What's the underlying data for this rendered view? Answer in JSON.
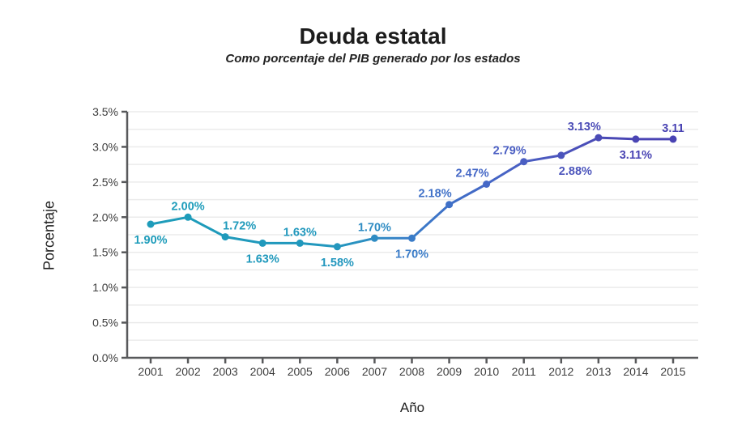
{
  "chart_data": {
    "type": "line",
    "title": "Deuda estatal",
    "subtitle": "Como porcentaje del PIB generado por los estados",
    "xlabel": "Año",
    "ylabel": "Porcentaje",
    "x": [
      2001,
      2002,
      2003,
      2004,
      2005,
      2006,
      2007,
      2008,
      2009,
      2010,
      2011,
      2012,
      2013,
      2014,
      2015
    ],
    "xtick_labels": [
      "2001",
      "2002",
      "2003",
      "2004",
      "2005",
      "2006",
      "2007",
      "2008",
      "2009",
      "2010",
      "2011",
      "2012",
      "2013",
      "2014",
      "2015"
    ],
    "values": [
      1.9,
      2.0,
      1.72,
      1.63,
      1.63,
      1.58,
      1.7,
      1.7,
      2.18,
      2.47,
      2.79,
      2.88,
      3.13,
      3.11,
      3.11
    ],
    "point_labels": [
      "1.90%",
      "2.00%",
      "1.72%",
      "1.63%",
      "1.63%",
      "1.58%",
      "1.70%",
      "1.70%",
      "2.18%",
      "2.47%",
      "2.79%",
      "2.88%",
      "3.13%",
      "3.11%",
      "3.11"
    ],
    "label_placement": [
      "below",
      "above",
      "above",
      "below",
      "above",
      "below",
      "above",
      "below",
      "above",
      "above",
      "above",
      "below",
      "above",
      "below",
      "above"
    ],
    "label_anchor": [
      "middle",
      "middle",
      "start",
      "middle",
      "middle",
      "middle",
      "middle",
      "middle",
      "end",
      "end",
      "end",
      "start",
      "end",
      "middle",
      "middle"
    ],
    "point_colors": [
      "#1e9cba",
      "#1e9cba",
      "#1f9abb",
      "#2099bc",
      "#2198bd",
      "#2397be",
      "#2f8cc3",
      "#3a7cc8",
      "#3f70c7",
      "#4467c6",
      "#4a5ec2",
      "#4b54bc",
      "#4a4bb6",
      "#4a45b4",
      "#4943b3"
    ],
    "ylim": [
      0,
      3.5
    ],
    "ytick_step": 0.5,
    "ytick_labels": [
      "0.0%",
      "0.5%",
      "1.0%",
      "1.5%",
      "2.0%",
      "2.5%",
      "3.0%",
      "3.5%"
    ],
    "minor_grid_step": 0.25,
    "grid": true,
    "legend": false,
    "colors": {
      "line_gradient_start": "#1e9cba",
      "line_gradient_end": "#4943b3",
      "gridline": "#ebebeb",
      "axis": "#58595b",
      "tick_text": "#3d3d3d",
      "title_text": "#1c1c1c"
    }
  }
}
